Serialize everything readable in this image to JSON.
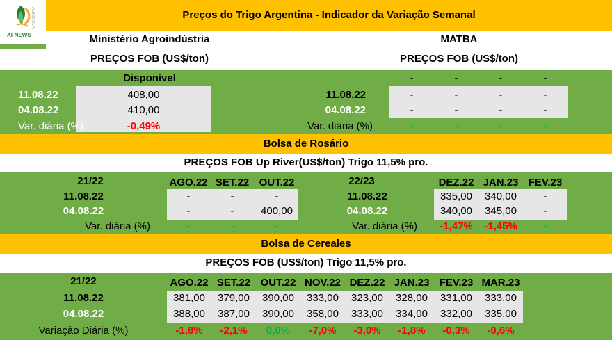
{
  "logo": {
    "brand": "AFNEWS",
    "tag": "AGRICOLA"
  },
  "title": "Preços do Trigo Argentina - Indicador da Variação Semanal",
  "ministerio": {
    "header": "Ministério Agroindústria",
    "subheader": "PREÇOS FOB (US$/ton)",
    "col_label": "Disponível",
    "rows": [
      {
        "label": "11.08.22",
        "value": "408,00"
      },
      {
        "label": "04.08.22",
        "value": "410,00"
      }
    ],
    "var_label": "Var. diária (%)",
    "var_value": "-0,49%"
  },
  "matba": {
    "header": "MATBA",
    "subheader": "PREÇOS FOB (US$/ton)",
    "cols": [
      "-",
      "-",
      "-",
      "-"
    ],
    "rows": [
      {
        "label": "11.08.22",
        "values": [
          "-",
          "-",
          "-",
          "-"
        ]
      },
      {
        "label": "04.08.22",
        "values": [
          "-",
          "-",
          "-",
          "-"
        ]
      }
    ],
    "var_label": "Var. diária (%)",
    "var_values": [
      "-",
      "-",
      "-",
      "-"
    ]
  },
  "rosario": {
    "header": "Bolsa de Rosário",
    "subheader": "PREÇOS FOB Up River(US$/ton) Trigo 11,5% pro.",
    "left": {
      "season": "21/22",
      "cols": [
        "AGO.22",
        "SET.22",
        "OUT.22"
      ],
      "rows": [
        {
          "label": "11.08.22",
          "values": [
            "-",
            "-",
            "-"
          ]
        },
        {
          "label": "04.08.22",
          "values": [
            "-",
            "-",
            "400,00"
          ]
        }
      ],
      "var_label": "Var. diária (%)",
      "var_values": [
        "-",
        "-",
        "-"
      ]
    },
    "right": {
      "season": "22/23",
      "cols": [
        "DEZ.22",
        "JAN.23",
        "FEV.23"
      ],
      "rows": [
        {
          "label": "11.08.22",
          "values": [
            "335,00",
            "340,00",
            "-"
          ]
        },
        {
          "label": "04.08.22",
          "values": [
            "340,00",
            "345,00",
            "-"
          ]
        }
      ],
      "var_label": "Var. diária (%)",
      "var_values": [
        "-1,47%",
        "-1,45%",
        "-"
      ]
    }
  },
  "cereales": {
    "header": "Bolsa de Cereales",
    "subheader": "PREÇOS FOB (US$/ton) Trigo 11,5% pro.",
    "season": "21/22",
    "cols": [
      "AGO.22",
      "SET.22",
      "OUT.22",
      "NOV.22",
      "DEZ.22",
      "JAN.23",
      "FEV.23",
      "MAR.23"
    ],
    "rows": [
      {
        "label": "11.08.22",
        "values": [
          "381,00",
          "379,00",
          "390,00",
          "333,00",
          "323,00",
          "328,00",
          "331,00",
          "333,00"
        ]
      },
      {
        "label": "04.08.22",
        "values": [
          "388,00",
          "387,00",
          "390,00",
          "358,00",
          "333,00",
          "334,00",
          "332,00",
          "335,00"
        ]
      }
    ],
    "var_label": "Variação Diária (%)",
    "var_values": [
      "-1,8%",
      "-2,1%",
      "0,0%",
      "-7,0%",
      "-3,0%",
      "-1,8%",
      "-0,3%",
      "-0,6%"
    ]
  },
  "colors": {
    "green": "#70ad47",
    "yellow": "#ffc000",
    "grey": "#e7e6e6",
    "red": "#ff0000",
    "positive": "#00b050"
  }
}
